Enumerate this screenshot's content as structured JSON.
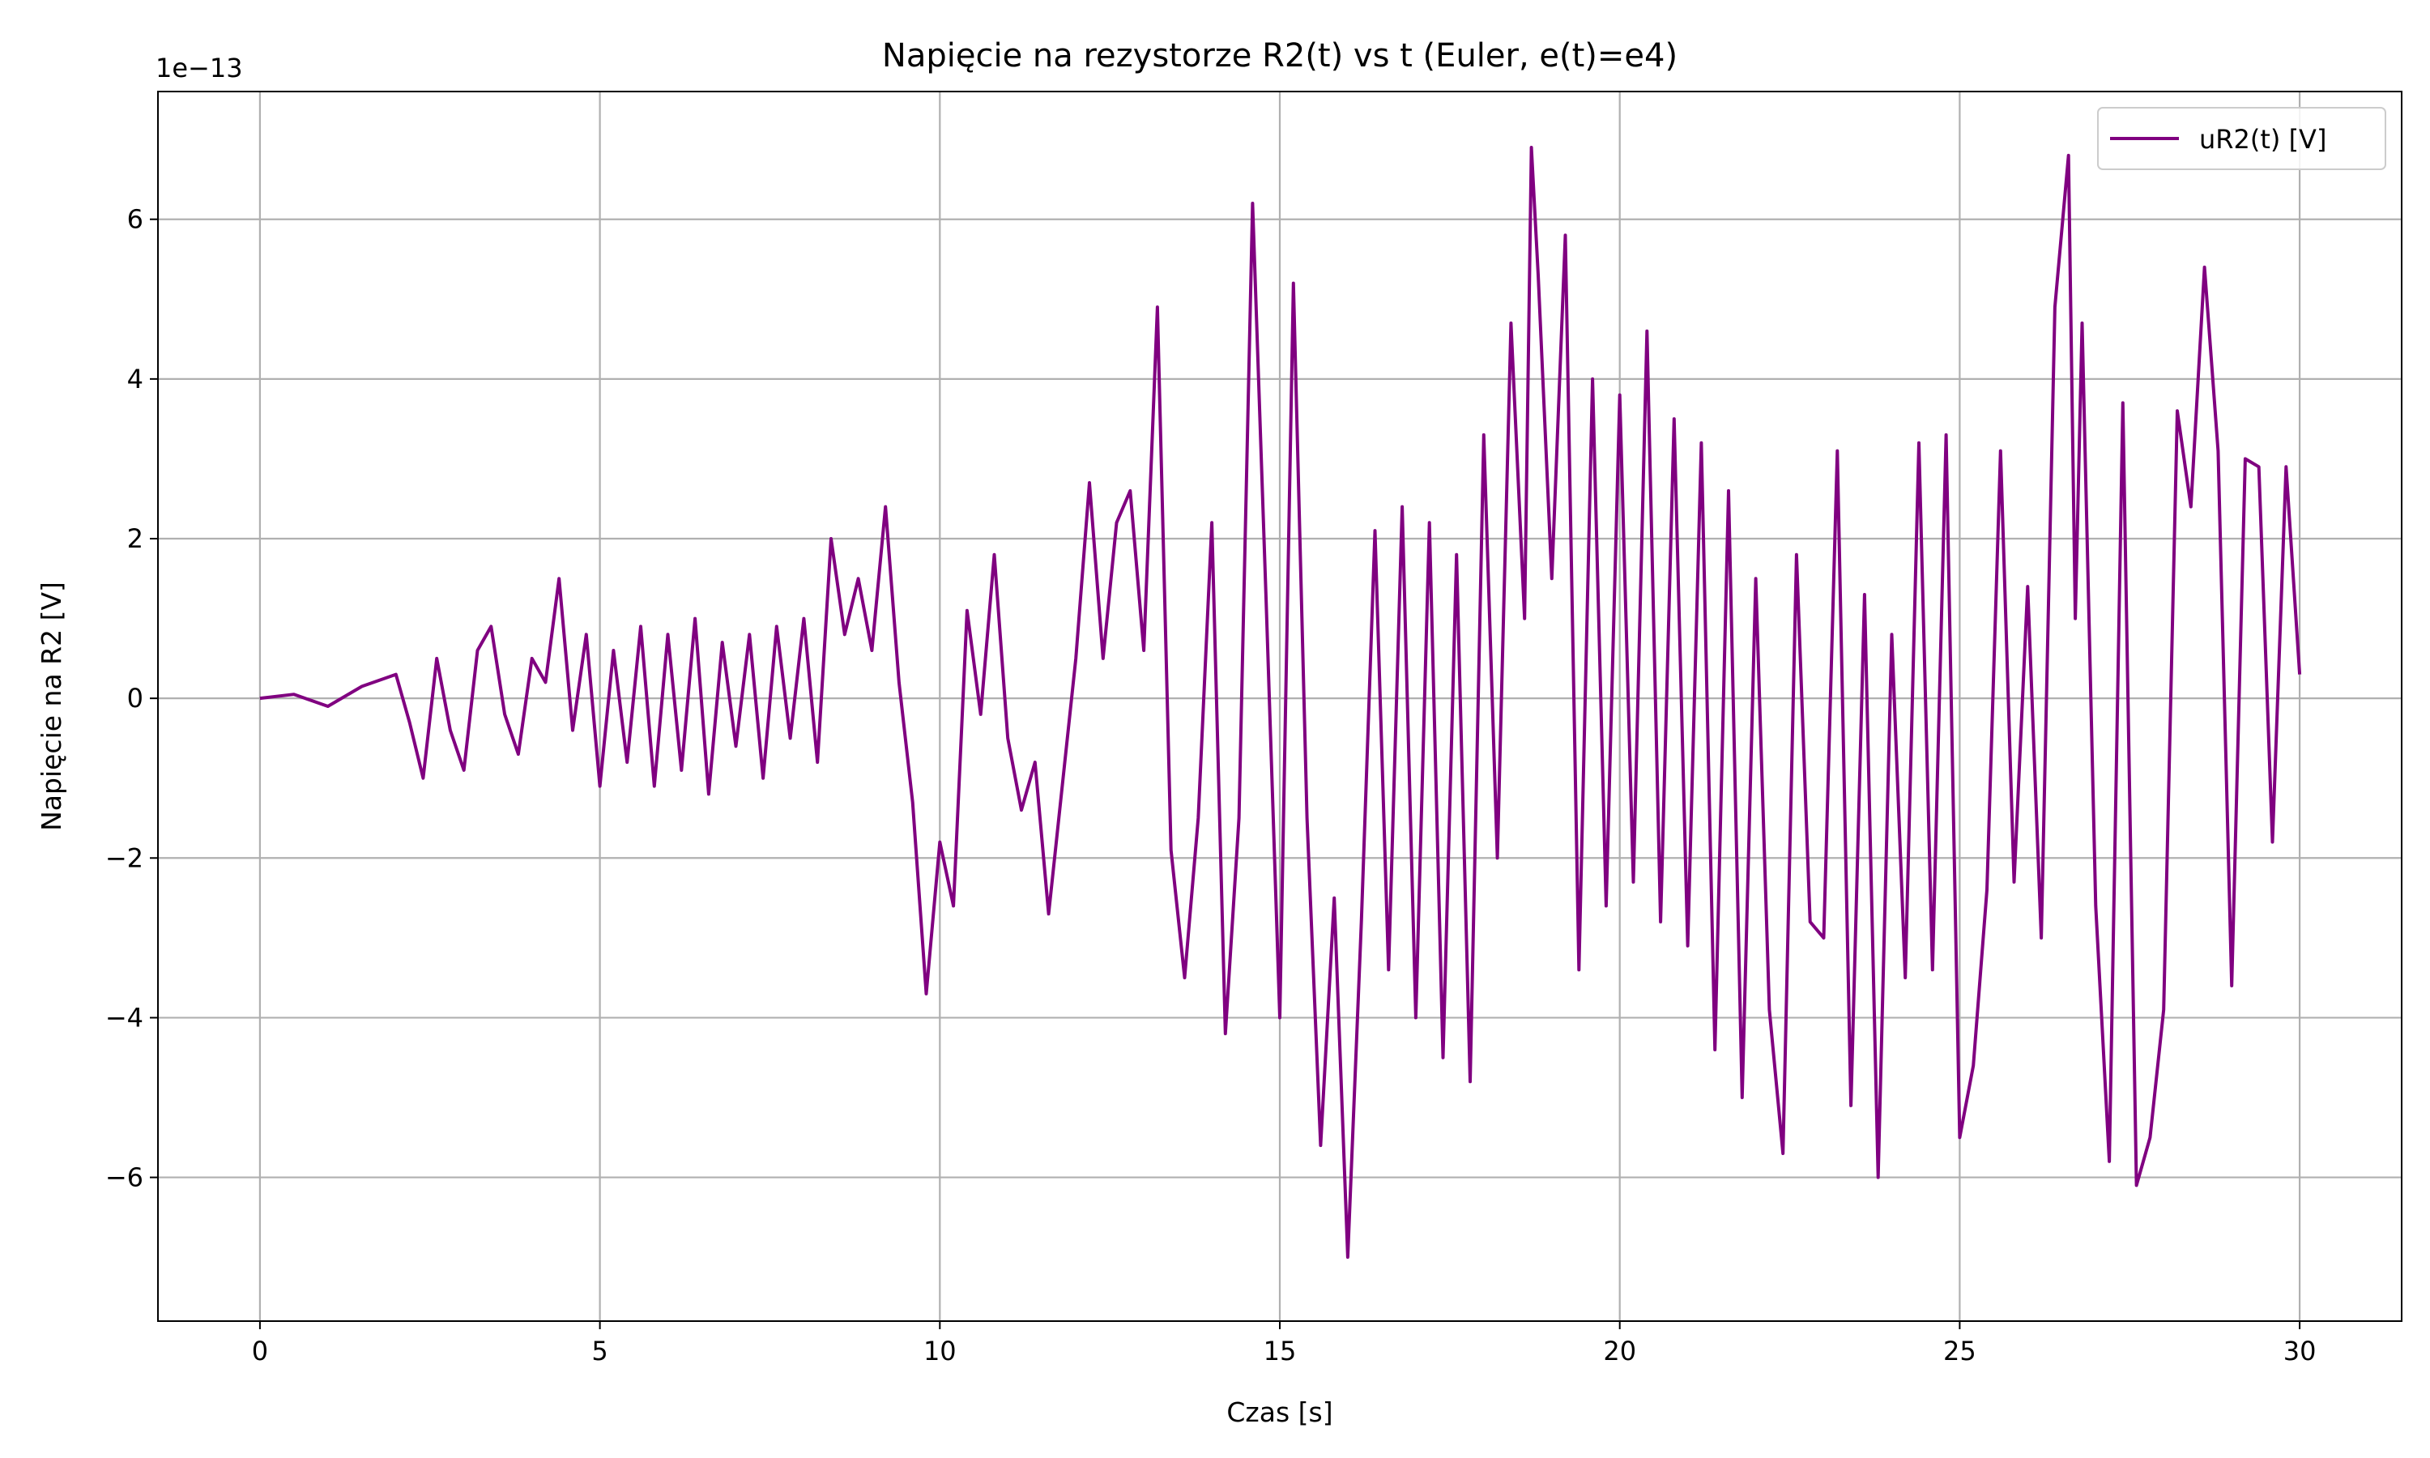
{
  "chart_data": {
    "type": "line",
    "title": "Napięcie na rezystorze R2(t) vs t (Euler, e(t)=e4)",
    "xlabel": "Czas [s]",
    "ylabel": "Napięcie na R2 [V]",
    "y_offset_text": "1e−13",
    "y_scale_factor": 1e-13,
    "xlim": [
      -1.5,
      31.5
    ],
    "ylim": [
      -7.8,
      7.6
    ],
    "x_ticks": [
      0,
      5,
      10,
      15,
      20,
      25,
      30
    ],
    "x_tick_labels": [
      "0",
      "5",
      "10",
      "15",
      "20",
      "25",
      "30"
    ],
    "y_ticks": [
      -6,
      -4,
      -2,
      0,
      2,
      4,
      6
    ],
    "y_tick_labels": [
      "−6",
      "−4",
      "−2",
      "0",
      "2",
      "4",
      "6"
    ],
    "grid": true,
    "legend_position": "top-right",
    "series": [
      {
        "name": "uR2(t) [V]",
        "color": "#800080",
        "x": [
          0,
          0.5,
          1.0,
          1.5,
          2.0,
          2.2,
          2.4,
          2.6,
          2.8,
          3.0,
          3.2,
          3.4,
          3.6,
          3.8,
          4.0,
          4.2,
          4.4,
          4.6,
          4.8,
          5.0,
          5.2,
          5.4,
          5.6,
          5.8,
          6.0,
          6.2,
          6.4,
          6.6,
          6.8,
          7.0,
          7.2,
          7.4,
          7.6,
          7.8,
          8.0,
          8.2,
          8.4,
          8.6,
          8.8,
          9.0,
          9.2,
          9.4,
          9.6,
          9.8,
          10.0,
          10.2,
          10.4,
          10.6,
          10.8,
          11.0,
          11.2,
          11.4,
          11.6,
          11.8,
          12.0,
          12.2,
          12.4,
          12.6,
          12.8,
          13.0,
          13.2,
          13.4,
          13.6,
          13.8,
          14.0,
          14.2,
          14.4,
          14.6,
          14.8,
          15.0,
          15.2,
          15.4,
          15.6,
          15.8,
          16.0,
          16.2,
          16.4,
          16.6,
          16.8,
          17.0,
          17.2,
          17.4,
          17.6,
          17.8,
          18.0,
          18.2,
          18.4,
          18.6,
          18.7,
          18.8,
          19.0,
          19.2,
          19.4,
          19.6,
          19.8,
          20.0,
          20.2,
          20.4,
          20.6,
          20.8,
          21.0,
          21.2,
          21.4,
          21.6,
          21.8,
          22.0,
          22.2,
          22.4,
          22.6,
          22.8,
          23.0,
          23.2,
          23.4,
          23.6,
          23.8,
          24.0,
          24.2,
          24.4,
          24.6,
          24.8,
          25.0,
          25.2,
          25.4,
          25.6,
          25.8,
          26.0,
          26.2,
          26.4,
          26.6,
          26.7,
          26.8,
          27.0,
          27.2,
          27.4,
          27.6,
          27.8,
          28.0,
          28.2,
          28.4,
          28.6,
          28.8,
          29.0,
          29.2,
          29.4,
          29.6,
          29.8,
          30.0
        ],
        "y": [
          0,
          0.05,
          -0.1,
          0.15,
          0.3,
          -0.3,
          -1.0,
          0.5,
          -0.4,
          -0.9,
          0.6,
          0.9,
          -0.2,
          -0.7,
          0.5,
          0.2,
          1.5,
          -0.4,
          0.8,
          -1.1,
          0.6,
          -0.8,
          0.9,
          -1.1,
          0.8,
          -0.9,
          1.0,
          -1.2,
          0.7,
          -0.6,
          0.8,
          -1.0,
          0.9,
          -0.5,
          1.0,
          -0.8,
          2.0,
          0.8,
          1.5,
          0.6,
          2.4,
          0.2,
          -1.3,
          -3.7,
          -1.8,
          -2.6,
          1.1,
          -0.2,
          1.8,
          -0.5,
          -1.4,
          -0.8,
          -2.7,
          -1.1,
          0.5,
          2.7,
          0.5,
          2.2,
          2.6,
          0.6,
          4.9,
          -1.9,
          -3.5,
          -1.5,
          2.2,
          -4.2,
          -1.5,
          6.2,
          1.2,
          -4.0,
          5.2,
          -1.5,
          -5.6,
          -2.5,
          -7.0,
          -2.8,
          2.1,
          -3.4,
          2.4,
          -4.0,
          2.2,
          -4.5,
          1.8,
          -4.8,
          3.3,
          -2.0,
          4.7,
          1.0,
          6.9,
          5.3,
          1.5,
          5.8,
          -3.4,
          4.0,
          -2.6,
          3.8,
          -2.3,
          4.6,
          -2.8,
          3.5,
          -3.1,
          3.2,
          -4.4,
          2.6,
          -5.0,
          1.5,
          -3.9,
          -5.7,
          1.8,
          -2.8,
          -3.0,
          3.1,
          -5.1,
          1.3,
          -6.0,
          0.8,
          -3.5,
          3.2,
          -3.4,
          3.3,
          -5.5,
          -4.6,
          -2.4,
          3.1,
          -2.3,
          1.4,
          -3.0,
          4.9,
          6.8,
          1.0,
          4.7,
          -2.6,
          -5.8,
          3.7,
          -6.1,
          -5.5,
          -3.9,
          3.6,
          2.4,
          5.4,
          3.1,
          -3.6,
          3.0,
          2.9,
          -1.8,
          2.9,
          0.3
        ]
      }
    ]
  }
}
